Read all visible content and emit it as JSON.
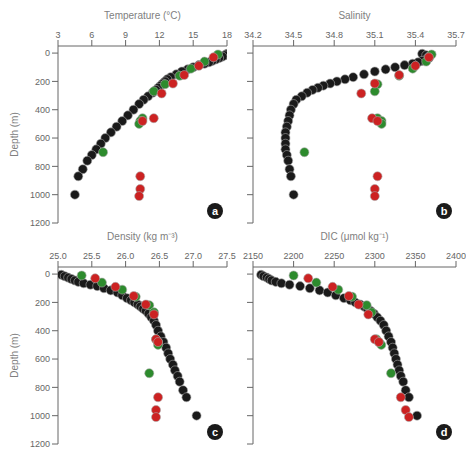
{
  "chart_data": [
    {
      "type": "scatter",
      "xlabel": "Temperature (°C)",
      "ylabel": "Depth (m)",
      "annotations": [
        "a"
      ],
      "xlim": [
        3,
        18
      ],
      "xticks": [
        3,
        6,
        9,
        12,
        15,
        18
      ],
      "ylim": [
        1200,
        -50
      ],
      "yticks": [
        0,
        200,
        400,
        600,
        800,
        1000,
        1200
      ],
      "series": [
        {
          "color": "#1a1a1a",
          "x": [
            18.0,
            17.8,
            17.6,
            17.3,
            17.0,
            16.7,
            16.4,
            16.0,
            15.5,
            15.0,
            14.5,
            14.0,
            13.5,
            13.0,
            12.7,
            12.5,
            12.3,
            12.1,
            11.9,
            11.7,
            11.4,
            11.0,
            10.6,
            10.2,
            9.7,
            9.2,
            8.7,
            8.2,
            7.7,
            7.2,
            6.8,
            6.4,
            6.0,
            5.6,
            5.2,
            4.8,
            4.5
          ],
          "values": [
            5,
            15,
            25,
            35,
            45,
            55,
            65,
            75,
            85,
            100,
            115,
            130,
            150,
            170,
            185,
            200,
            215,
            230,
            245,
            260,
            280,
            305,
            330,
            360,
            400,
            440,
            480,
            520,
            560,
            600,
            640,
            680,
            720,
            760,
            820,
            870,
            1000
          ]
        },
        {
          "color": "#2d8b2d",
          "x": [
            17.2,
            16.0,
            14.8,
            13.8,
            12.5,
            11.5,
            10.5,
            10.3,
            10.2,
            7.0
          ],
          "values": [
            10,
            60,
            110,
            160,
            220,
            270,
            460,
            480,
            500,
            700
          ]
        },
        {
          "color": "#cc2222",
          "x": [
            16.8,
            15.5,
            14.2,
            13.2,
            12.2,
            11.5,
            10.5,
            10.3,
            10.3,
            10.2
          ],
          "values": [
            30,
            90,
            155,
            215,
            285,
            460,
            480,
            870,
            960,
            1010
          ]
        }
      ]
    },
    {
      "type": "scatter",
      "xlabel": "Salinity",
      "annotations": [
        "b"
      ],
      "tick_labels": "x",
      "xlim": [
        34.2,
        35.7
      ],
      "xticks": [
        34.2,
        34.5,
        34.8,
        35.1,
        35.4,
        35.7
      ],
      "ylim": [
        1200,
        -50
      ],
      "yticks": [
        0,
        200,
        400,
        600,
        800,
        1000,
        1200
      ],
      "series": [
        {
          "color": "#1a1a1a",
          "x": [
            35.45,
            35.48,
            35.5,
            35.5,
            35.48,
            35.45,
            35.42,
            35.38,
            35.32,
            35.25,
            35.18,
            35.1,
            35.02,
            34.94,
            34.88,
            34.82,
            34.77,
            34.72,
            34.68,
            34.64,
            34.6,
            34.56,
            34.52,
            34.5,
            34.48,
            34.47,
            34.46,
            34.45,
            34.44,
            34.44,
            34.44,
            34.44,
            34.45,
            34.46,
            34.47,
            34.48,
            34.5
          ],
          "values": [
            5,
            15,
            25,
            35,
            45,
            55,
            65,
            75,
            85,
            100,
            115,
            130,
            150,
            170,
            185,
            200,
            215,
            230,
            245,
            260,
            280,
            305,
            330,
            360,
            400,
            440,
            480,
            520,
            560,
            600,
            640,
            680,
            720,
            760,
            820,
            870,
            1000
          ]
        },
        {
          "color": "#2d8b2d",
          "x": [
            35.52,
            35.48,
            35.38,
            35.28,
            35.12,
            35.1,
            35.12,
            35.15,
            35.15,
            34.58
          ],
          "values": [
            10,
            60,
            110,
            160,
            220,
            270,
            460,
            480,
            500,
            700
          ]
        },
        {
          "color": "#cc2222",
          "x": [
            35.5,
            35.4,
            35.28,
            35.1,
            35.0,
            35.08,
            35.12,
            35.12,
            35.1,
            35.1
          ],
          "values": [
            30,
            90,
            155,
            215,
            285,
            460,
            480,
            870,
            960,
            1010
          ]
        }
      ]
    },
    {
      "type": "scatter",
      "xlabel": "Density (kg m⁻³)",
      "ylabel": "Depth (m)",
      "annotations": [
        "c"
      ],
      "xlim": [
        25.0,
        27.5
      ],
      "xticks": [
        {
          "value": 25.0,
          "label": "25.0"
        },
        25.5,
        {
          "value": 26.0,
          "label": "26.0"
        },
        26.5,
        {
          "value": 27.0,
          "label": "27.0"
        },
        27.5
      ],
      "ylim": [
        1200,
        -50
      ],
      "yticks": [
        0,
        200,
        400,
        600,
        800,
        1000,
        1200
      ],
      "series": [
        {
          "color": "#1a1a1a",
          "x": [
            25.05,
            25.1,
            25.15,
            25.2,
            25.25,
            25.3,
            25.38,
            25.48,
            25.58,
            25.68,
            25.78,
            25.88,
            25.95,
            26.02,
            26.08,
            26.13,
            26.18,
            26.22,
            26.26,
            26.3,
            26.34,
            26.38,
            26.42,
            26.45,
            26.48,
            26.52,
            26.56,
            26.6,
            26.63,
            26.66,
            26.7,
            26.73,
            26.77,
            26.8,
            26.85,
            26.9,
            27.05
          ],
          "values": [
            5,
            15,
            25,
            35,
            45,
            55,
            65,
            75,
            85,
            100,
            115,
            130,
            150,
            170,
            185,
            200,
            215,
            230,
            245,
            260,
            280,
            305,
            330,
            360,
            400,
            440,
            480,
            520,
            560,
            600,
            640,
            680,
            720,
            760,
            820,
            870,
            1000
          ]
        },
        {
          "color": "#2d8b2d",
          "x": [
            25.35,
            25.65,
            25.95,
            26.15,
            26.35,
            26.42,
            26.45,
            26.48,
            26.48,
            26.35
          ],
          "values": [
            10,
            60,
            110,
            160,
            220,
            270,
            460,
            480,
            500,
            700
          ]
        },
        {
          "color": "#cc2222",
          "x": [
            25.55,
            25.85,
            26.12,
            26.3,
            26.42,
            26.45,
            26.48,
            26.48,
            26.45,
            26.45
          ],
          "values": [
            30,
            90,
            155,
            215,
            285,
            460,
            480,
            870,
            960,
            1010
          ]
        }
      ]
    },
    {
      "type": "scatter",
      "xlabel": "DIC (μmol kg⁻¹)",
      "annotations": [
        "d"
      ],
      "tick_labels": "x",
      "xlim": [
        2150,
        2400
      ],
      "xticks": [
        2150,
        2200,
        2250,
        2300,
        2350,
        2400
      ],
      "ylim": [
        1200,
        -50
      ],
      "yticks": [
        0,
        200,
        400,
        600,
        800,
        1000,
        1200
      ],
      "series": [
        {
          "color": "#1a1a1a",
          "x": [
            2160,
            2163,
            2167,
            2170,
            2173,
            2178,
            2185,
            2195,
            2208,
            2220,
            2232,
            2242,
            2252,
            2262,
            2270,
            2276,
            2282,
            2287,
            2291,
            2295,
            2299,
            2303,
            2307,
            2311,
            2314,
            2317,
            2320,
            2322,
            2324,
            2326,
            2328,
            2330,
            2332,
            2335,
            2338,
            2342,
            2352
          ],
          "values": [
            5,
            15,
            25,
            35,
            45,
            55,
            65,
            75,
            85,
            100,
            115,
            130,
            150,
            170,
            185,
            200,
            215,
            230,
            245,
            260,
            280,
            305,
            330,
            360,
            400,
            440,
            480,
            520,
            560,
            600,
            640,
            680,
            720,
            760,
            820,
            870,
            1000
          ]
        },
        {
          "color": "#2d8b2d",
          "x": [
            2200,
            2228,
            2255,
            2272,
            2290,
            2296,
            2302,
            2305,
            2308,
            2320
          ],
          "values": [
            10,
            60,
            110,
            160,
            220,
            270,
            460,
            480,
            500,
            700
          ]
        },
        {
          "color": "#cc2222",
          "x": [
            2218,
            2248,
            2268,
            2280,
            2292,
            2300,
            2305,
            2332,
            2338,
            2342
          ],
          "values": [
            30,
            90,
            155,
            215,
            285,
            460,
            480,
            870,
            960,
            1010
          ]
        }
      ]
    }
  ]
}
